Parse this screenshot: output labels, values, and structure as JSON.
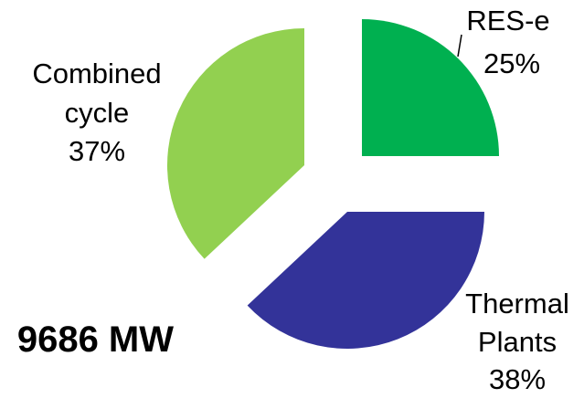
{
  "chart_data": {
    "type": "pie",
    "exploded": true,
    "start_angle_deg": 0,
    "direction": "clockwise",
    "slices": [
      {
        "label": "RES-e",
        "value": 25,
        "value_label": "25%",
        "color": "#00b050"
      },
      {
        "label": "Thermal Plants",
        "label_lines": [
          "Thermal",
          "Plants"
        ],
        "value": 38,
        "value_label": "38%",
        "color": "#333399"
      },
      {
        "label": "Combined cycle",
        "label_lines": [
          "Combined",
          "cycle"
        ],
        "value": 37,
        "value_label": "37%",
        "color": "#92d050"
      }
    ],
    "total_label": "9686 MW",
    "legend": "none"
  }
}
